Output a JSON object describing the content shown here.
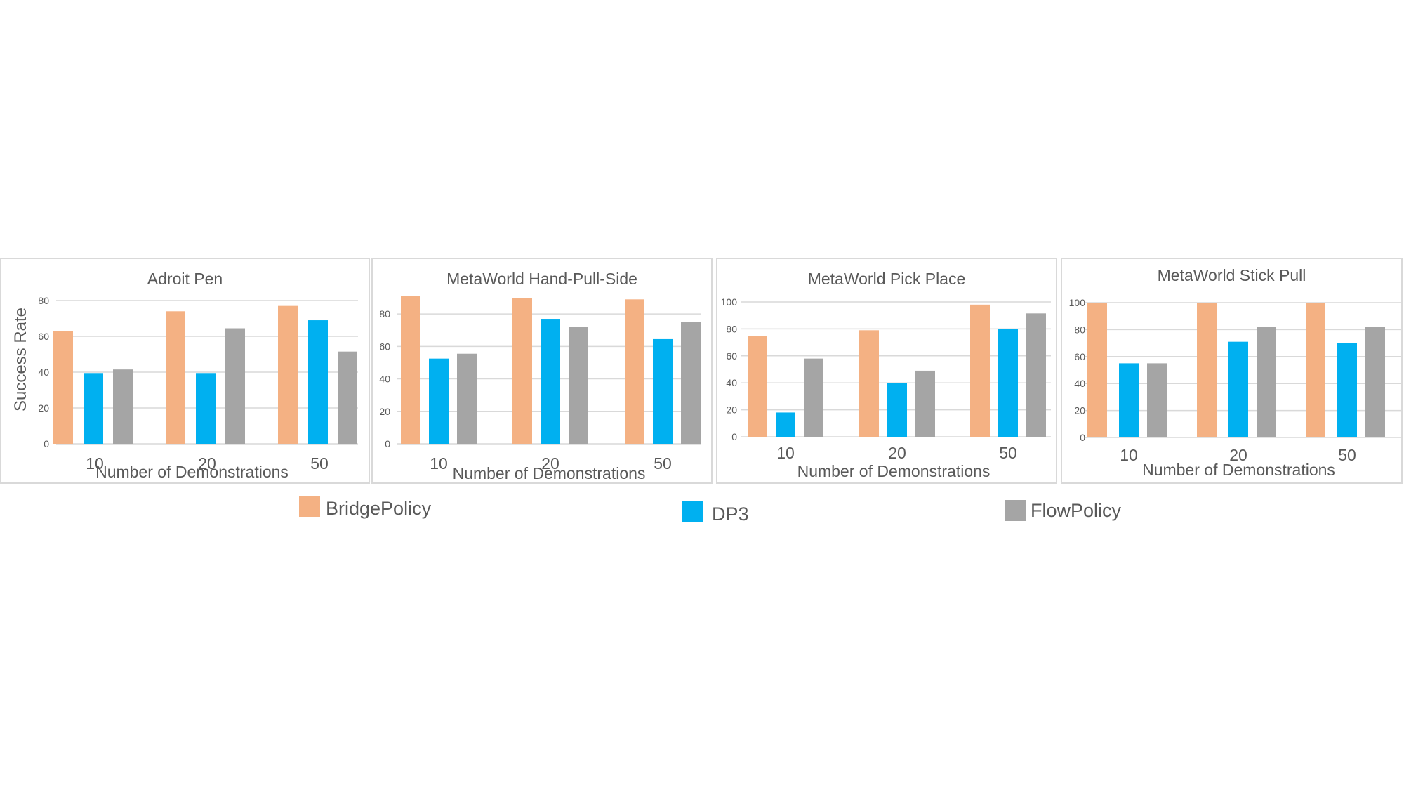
{
  "chart_data": [
    {
      "type": "bar",
      "title": "Adroit Pen",
      "xlabel": "Number of Demonstrations",
      "ylabel": "Success Rate",
      "ylim": [
        0,
        80
      ],
      "yticks": [
        "0",
        "20",
        "40",
        "60",
        "80"
      ],
      "grid": true,
      "categories": [
        "10",
        "20",
        "50"
      ],
      "series": [
        {
          "name": "BridgePolicy",
          "values": [
            63,
            74,
            77
          ]
        },
        {
          "name": "DP3",
          "values": [
            39.5,
            39.5,
            69
          ]
        },
        {
          "name": "FlowPolicy",
          "values": [
            41.5,
            64.5,
            51.5
          ]
        }
      ]
    },
    {
      "type": "bar",
      "title": "MetaWorld Hand-Pull-Side",
      "xlabel": "Number of Demonstrations",
      "ylabel": "",
      "ylim": [
        0,
        90
      ],
      "yticks": [
        "0",
        "20",
        "40",
        "60",
        "80"
      ],
      "grid": true,
      "categories": [
        "10",
        "20",
        "50"
      ],
      "series": [
        {
          "name": "BridgePolicy",
          "values": [
            91,
            90,
            89
          ]
        },
        {
          "name": "DP3",
          "values": [
            52.5,
            77,
            64.5
          ]
        },
        {
          "name": "FlowPolicy",
          "values": [
            55.5,
            72,
            75
          ]
        }
      ]
    },
    {
      "type": "bar",
      "title": "MetaWorld Pick Place",
      "xlabel": "Number of Demonstrations",
      "ylabel": "",
      "ylim": [
        0,
        100
      ],
      "yticks": [
        "0",
        "20",
        "40",
        "60",
        "80",
        "100"
      ],
      "grid": true,
      "categories": [
        "10",
        "20",
        "50"
      ],
      "series": [
        {
          "name": "BridgePolicy",
          "values": [
            75,
            79,
            98
          ]
        },
        {
          "name": "DP3",
          "values": [
            18,
            40,
            80
          ]
        },
        {
          "name": "FlowPolicy",
          "values": [
            58,
            49,
            91.5
          ]
        }
      ]
    },
    {
      "type": "bar",
      "title": "MetaWorld Stick Pull",
      "xlabel": "Number of Demonstrations",
      "ylabel": "",
      "ylim": [
        0,
        100
      ],
      "yticks": [
        "0",
        "20",
        "40",
        "60",
        "80",
        "100"
      ],
      "grid": true,
      "categories": [
        "10",
        "20",
        "50"
      ],
      "series": [
        {
          "name": "BridgePolicy",
          "values": [
            100,
            100,
            100
          ]
        },
        {
          "name": "DP3",
          "values": [
            55,
            71,
            70
          ]
        },
        {
          "name": "FlowPolicy",
          "values": [
            55,
            82,
            82
          ]
        }
      ]
    }
  ],
  "legend": [
    {
      "name": "BridgePolicy",
      "color": "#F4B183"
    },
    {
      "name": "DP3",
      "color": "#00B0F0"
    },
    {
      "name": "FlowPolicy",
      "color": "#A5A5A5"
    }
  ],
  "colors": {
    "BridgePolicy": "#F4B183",
    "DP3": "#00B0F0",
    "FlowPolicy": "#A5A5A5",
    "grid": "#D9D9D9",
    "text": "#595959",
    "frame": "#D9D9D9"
  }
}
